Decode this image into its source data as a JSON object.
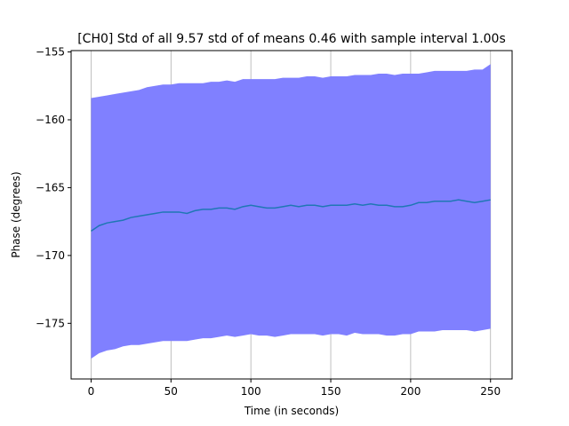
{
  "chart_data": {
    "type": "area",
    "title": "[CH0] Std of all 9.57 std of of means 0.46 with sample interval 1.00s",
    "xlabel": "Time (in seconds)",
    "ylabel": "Phase (degrees)",
    "xlim": [
      -12.5,
      263.5
    ],
    "ylim": [
      -179.1,
      -154.9
    ],
    "xticks": [
      0,
      50,
      100,
      150,
      200,
      250
    ],
    "xtick_labels": [
      "0",
      "50",
      "100",
      "150",
      "200",
      "250"
    ],
    "yticks": [
      -155,
      -160,
      -165,
      -170,
      -175
    ],
    "ytick_labels": [
      "−155",
      "−160",
      "−165",
      "−170",
      "−175"
    ],
    "grid": "x-only",
    "colors": {
      "mean_line": "#1f77b4",
      "band": "#8080ff"
    },
    "series": [
      {
        "kind": "line",
        "x": [
          0,
          5,
          10,
          15,
          20,
          25,
          30,
          35,
          40,
          45,
          50,
          55,
          60,
          65,
          70,
          75,
          80,
          85,
          90,
          95,
          100,
          105,
          110,
          115,
          120,
          125,
          130,
          135,
          140,
          145,
          150,
          155,
          160,
          165,
          170,
          175,
          180,
          185,
          190,
          195,
          200,
          205,
          210,
          215,
          220,
          225,
          230,
          235,
          240,
          245,
          250
        ],
        "values": [
          -168.2,
          -167.8,
          -167.6,
          -167.5,
          -167.4,
          -167.2,
          -167.1,
          -167.0,
          -166.9,
          -166.8,
          -166.8,
          -166.8,
          -166.9,
          -166.7,
          -166.6,
          -166.6,
          -166.5,
          -166.5,
          -166.6,
          -166.4,
          -166.3,
          -166.4,
          -166.5,
          -166.5,
          -166.4,
          -166.3,
          -166.4,
          -166.3,
          -166.3,
          -166.4,
          -166.3,
          -166.3,
          -166.3,
          -166.2,
          -166.3,
          -166.2,
          -166.3,
          -166.3,
          -166.4,
          -166.4,
          -166.3,
          -166.1,
          -166.1,
          -166.0,
          -166.0,
          -166.0,
          -165.9,
          -166.0,
          -166.1,
          -166.0,
          -165.9
        ]
      },
      {
        "kind": "band",
        "x": [
          0,
          5,
          10,
          15,
          20,
          25,
          30,
          35,
          40,
          45,
          50,
          55,
          60,
          65,
          70,
          75,
          80,
          85,
          90,
          95,
          100,
          105,
          110,
          115,
          120,
          125,
          130,
          135,
          140,
          145,
          150,
          155,
          160,
          165,
          170,
          175,
          180,
          185,
          190,
          195,
          200,
          205,
          210,
          215,
          220,
          225,
          230,
          235,
          240,
          245,
          250
        ],
        "upper": [
          -158.4,
          -158.3,
          -158.2,
          -158.1,
          -158.0,
          -157.9,
          -157.8,
          -157.6,
          -157.5,
          -157.4,
          -157.4,
          -157.3,
          -157.3,
          -157.3,
          -157.3,
          -157.2,
          -157.2,
          -157.1,
          -157.2,
          -157.0,
          -157.0,
          -157.0,
          -157.0,
          -157.0,
          -156.9,
          -156.9,
          -156.9,
          -156.8,
          -156.8,
          -156.9,
          -156.8,
          -156.8,
          -156.8,
          -156.7,
          -156.7,
          -156.7,
          -156.6,
          -156.6,
          -156.7,
          -156.6,
          -156.6,
          -156.6,
          -156.5,
          -156.4,
          -156.4,
          -156.4,
          -156.4,
          -156.4,
          -156.3,
          -156.3,
          -155.9
        ],
        "lower": [
          -177.6,
          -177.2,
          -177.0,
          -176.9,
          -176.7,
          -176.6,
          -176.6,
          -176.5,
          -176.4,
          -176.3,
          -176.3,
          -176.3,
          -176.3,
          -176.2,
          -176.1,
          -176.1,
          -176.0,
          -175.9,
          -176.0,
          -175.9,
          -175.8,
          -175.9,
          -175.9,
          -176.0,
          -175.9,
          -175.8,
          -175.8,
          -175.8,
          -175.8,
          -175.9,
          -175.8,
          -175.8,
          -175.9,
          -175.7,
          -175.8,
          -175.8,
          -175.8,
          -175.9,
          -175.9,
          -175.8,
          -175.8,
          -175.6,
          -175.6,
          -175.6,
          -175.5,
          -175.5,
          -175.5,
          -175.5,
          -175.6,
          -175.5,
          -175.4
        ]
      }
    ]
  }
}
